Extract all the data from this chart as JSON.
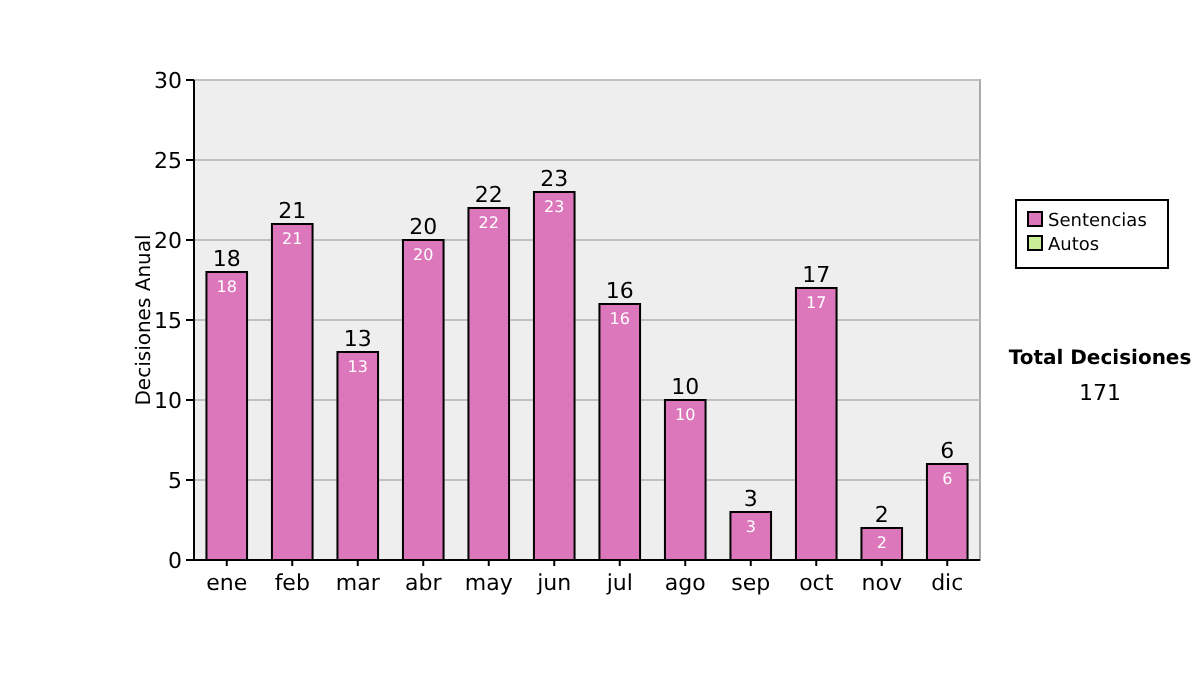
{
  "chart_data": {
    "type": "bar",
    "stacked": true,
    "ylabel": "Decisiones Anual",
    "categories": [
      "ene",
      "feb",
      "mar",
      "abr",
      "may",
      "jun",
      "jul",
      "ago",
      "sep",
      "oct",
      "nov",
      "dic"
    ],
    "series": [
      {
        "name": "Sentencias",
        "color": "#dd77bb",
        "values": [
          18,
          21,
          13,
          20,
          22,
          23,
          16,
          10,
          3,
          17,
          2,
          6
        ],
        "value_labels": [
          "18",
          "21",
          "13",
          "20",
          "22",
          "23",
          "16",
          "10",
          "3",
          "17",
          "2",
          "6"
        ]
      },
      {
        "name": "Autos",
        "color": "#ccee99",
        "values": [
          0,
          0,
          0,
          0,
          0,
          0,
          0,
          0,
          0,
          0,
          0,
          0
        ]
      }
    ],
    "totals": [
      "18",
      "21",
      "13",
      "20",
      "22",
      "23",
      "16",
      "10",
      "3",
      "17",
      "2",
      "6"
    ],
    "ylim": [
      0,
      30
    ],
    "yticks": [
      0,
      5,
      10,
      15,
      20,
      25,
      30
    ],
    "grid": "y",
    "legend": "right",
    "annotations": [
      "Total Decisiones",
      "171"
    ]
  }
}
